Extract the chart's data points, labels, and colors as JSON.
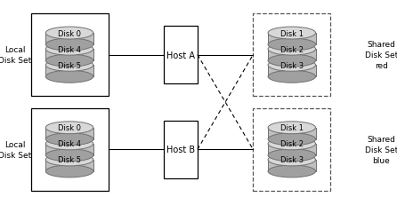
{
  "fig_width": 4.46,
  "fig_height": 2.32,
  "dpi": 100,
  "bg_color": "#ffffff",
  "disk_fill_top": "#d8d8d8",
  "disk_fill_body": "#c0c0c0",
  "disk_fill_bot": "#a0a0a0",
  "disk_edge": "#707070",
  "disk_label_fontsize": 6.0,
  "host_label_fontsize": 7.0,
  "side_label_fontsize": 6.5,
  "disk_labels_local": [
    "Disk 0",
    "Disk 4",
    "Disk 5"
  ],
  "disk_labels_shared": [
    "Disk 1",
    "Disk 2",
    "Disk 3"
  ],
  "host_a_label": "Host A",
  "host_b_label": "Host B",
  "local_set_label": "Local\nDisk Set",
  "shared_set_red_label": "Shared\nDisk Set\nred",
  "shared_set_blue_label": "Shared\nDisk Set\nblue"
}
